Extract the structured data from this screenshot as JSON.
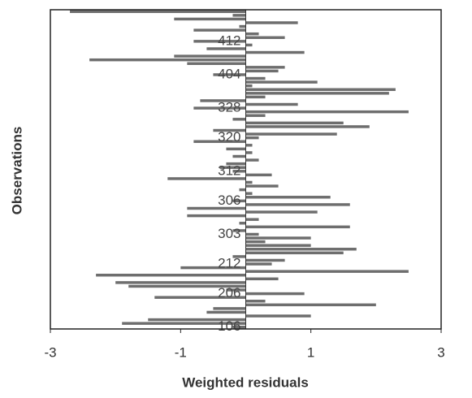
{
  "chart_data": {
    "type": "barh",
    "xlabel": "Weighted residuals",
    "ylabel": "Observations",
    "categories": [
      null,
      null,
      null,
      null,
      null,
      null,
      null,
      null,
      "412",
      null,
      null,
      null,
      null,
      null,
      null,
      null,
      null,
      "404",
      null,
      null,
      null,
      null,
      null,
      null,
      null,
      null,
      "328",
      null,
      null,
      null,
      null,
      null,
      null,
      null,
      "320",
      null,
      null,
      null,
      null,
      null,
      null,
      null,
      null,
      "312",
      null,
      null,
      null,
      null,
      null,
      null,
      null,
      "306",
      null,
      null,
      null,
      null,
      null,
      null,
      null,
      null,
      "303",
      null,
      null,
      null,
      null,
      null,
      null,
      null,
      "212",
      null,
      null,
      null,
      null,
      null,
      null,
      null,
      "206",
      null,
      null,
      null,
      null,
      null,
      null,
      null,
      null,
      "106"
    ],
    "values": [
      -2.7,
      -0.2,
      -1.1,
      0.8,
      -0.1,
      -0.8,
      0.2,
      0.6,
      -0.8,
      0.1,
      -0.6,
      0.9,
      -1.1,
      -2.4,
      -0.9,
      0.6,
      0.5,
      -0.5,
      0.3,
      1.1,
      0.1,
      2.3,
      2.2,
      0.3,
      -0.7,
      0.8,
      -0.8,
      2.5,
      0.3,
      -0.2,
      1.5,
      1.9,
      -0.5,
      1.4,
      0.2,
      -0.8,
      0.1,
      -0.3,
      0.1,
      -0.2,
      0.2,
      -0.3,
      -0.4,
      -0.2,
      0.4,
      -1.2,
      0.1,
      0.5,
      -0.1,
      0.1,
      1.3,
      -0.2,
      1.6,
      -0.9,
      1.1,
      -0.9,
      0.2,
      -0.1,
      1.6,
      -0.2,
      0.2,
      1.0,
      0.3,
      1.0,
      1.7,
      1.5,
      -0.2,
      0.6,
      0.4,
      -1.0,
      2.5,
      -2.3,
      0.5,
      -2.0,
      -1.8,
      -0.3,
      0.9,
      -1.4,
      0.3,
      2.0,
      -0.5,
      -0.6,
      1.0,
      -1.5,
      -1.9,
      -0.2
    ],
    "color": "#6e6e6e",
    "xlim": [
      -3,
      3
    ],
    "xticks": [
      -3,
      -1,
      1,
      3
    ]
  }
}
